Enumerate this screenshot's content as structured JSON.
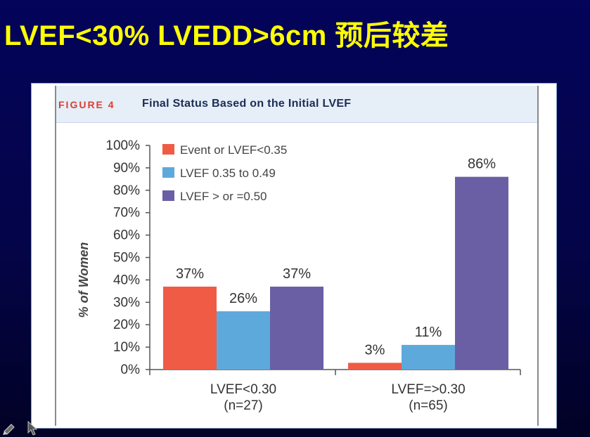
{
  "slide": {
    "title": "LVEF<30% LVEDD>6cm  预后较差"
  },
  "figure": {
    "label": "FIGURE 4",
    "caption": "Final Status Based on the Initial LVEF"
  },
  "chart_data": {
    "type": "bar",
    "title": "Final Status Based on the Initial LVEF",
    "ylabel": "% of Women",
    "xlabel": "",
    "ylim": [
      0,
      100
    ],
    "yticks": [
      0,
      10,
      20,
      30,
      40,
      50,
      60,
      70,
      80,
      90,
      100
    ],
    "ytick_labels": [
      "0%",
      "10%",
      "20%",
      "30%",
      "40%",
      "50%",
      "60%",
      "70%",
      "80%",
      "90%",
      "100%"
    ],
    "categories": [
      {
        "name": "LVEF<0.30",
        "n": "(n=27)"
      },
      {
        "name": "LVEF=>0.30",
        "n": "(n=65)"
      }
    ],
    "series": [
      {
        "name": "Event or LVEF<0.35",
        "color": "#ef5b45",
        "values": [
          37,
          3
        ],
        "labels": [
          "37%",
          "3%"
        ]
      },
      {
        "name": "LVEF 0.35 to 0.49",
        "color": "#5ea9dc",
        "values": [
          26,
          11
        ],
        "labels": [
          "26%",
          "11%"
        ]
      },
      {
        "name": "LVEF > or =0.50",
        "color": "#6a5fa5",
        "values": [
          37,
          86
        ],
        "labels": [
          "37%",
          "86%"
        ]
      }
    ],
    "legend_position": "top-left",
    "grid": false
  },
  "colors": {
    "title": "#ffff00",
    "background": "#03045a",
    "figure_label": "#dc3d32",
    "caption": "#1a2d54",
    "axis": "#555555",
    "text": "#333333"
  }
}
